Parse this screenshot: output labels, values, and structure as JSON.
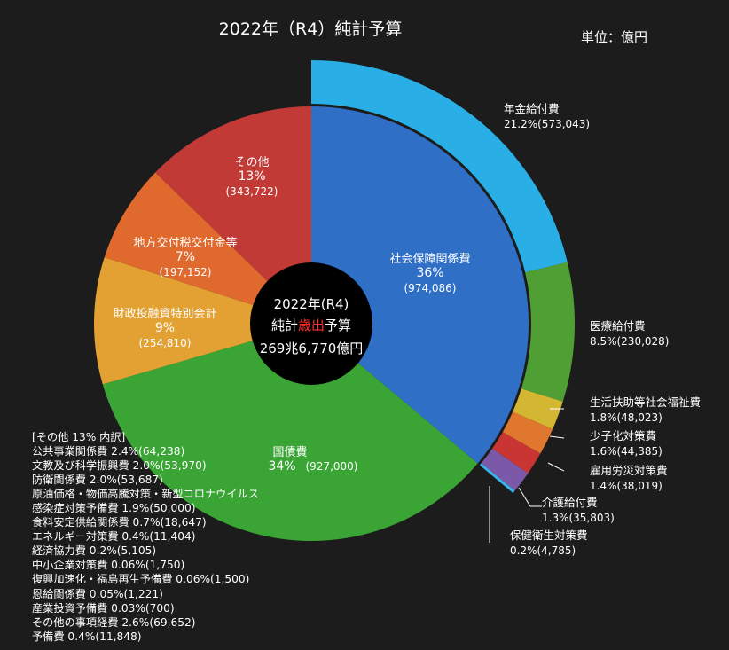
{
  "title": "2022年（R4）純計予算",
  "unit_label": "単位：億円",
  "center": {
    "line1": "2022年(R4)",
    "line2_prefix": "純計",
    "line2_highlight": "歳出",
    "line2_suffix": "予算",
    "line3": "269兆6,770億円"
  },
  "colors": {
    "background": "#1c1c1c",
    "center_circle": "#000000",
    "highlight": "#ff2d2d"
  },
  "breakdown": {
    "header": "[その他 13% 内訳]",
    "items": [
      "公共事業関係費 2.4%(64,238)",
      "文教及び科学振興費 2.0%(53,970)",
      "防衛関係費 2.0%(53,687)",
      "原油価格・物価高騰対策・新型コロナウイルス",
      "感染症対策予備費 1.9%(50,000)",
      "食料安定供給関係費 0.7%(18,647)",
      "エネルギー対策費 0.4%(11,404)",
      "経済協力費 0.2%(5,105)",
      "中小企業対策費 0.06%(1,750)",
      "復興加速化・福島再生予備費 0.06%(1,500)",
      "恩給関係費 0.05%(1,221)",
      "産業投資予備費 0.03%(700)",
      "その他の事項経費 2.6%(69,652)",
      "予備費 0.4%(11,848)"
    ]
  },
  "chart_data": {
    "type": "pie",
    "total": 2696770,
    "inner_ring": [
      {
        "name": "社会保障関係費",
        "pct_label": "36%",
        "value": 974086,
        "value_label": "(974,086)",
        "color": "#2f6fc6"
      },
      {
        "name": "国債費",
        "pct_label": "34%",
        "value": 927000,
        "value_label": "(927,000)",
        "color": "#3aa535"
      },
      {
        "name": "財政投融資特別会計",
        "pct_label": "9%",
        "value": 254810,
        "value_label": "(254,810)",
        "color": "#e3a133"
      },
      {
        "name": "地方交付税交付金等",
        "pct_label": "7%",
        "value": 197152,
        "value_label": "(197,152)",
        "color": "#e0692d"
      },
      {
        "name": "その他",
        "pct_label": "13%",
        "value": 343722,
        "value_label": "(343,722)",
        "color": "#c23a36"
      }
    ],
    "outer_ring": [
      {
        "name": "年金給付費",
        "label": "21.2%(573,043)",
        "value": 573043,
        "color": "#29aee6"
      },
      {
        "name": "医療給付費",
        "label": "8.5%(230,028)",
        "value": 230028,
        "color": "#4f9f35"
      },
      {
        "name": "生活扶助等社会福祉費",
        "label": "1.8%(48,023)",
        "value": 48023,
        "color": "#d3b733"
      },
      {
        "name": "少子化対策費",
        "label": "1.6%(44,385)",
        "value": 44385,
        "color": "#e0772e"
      },
      {
        "name": "雇用労災対策費",
        "label": "1.4%(38,019)",
        "value": 38019,
        "color": "#c83532"
      },
      {
        "name": "介護給付費",
        "label": "1.3%(35,803)",
        "value": 35803,
        "color": "#7b58a8"
      },
      {
        "name": "保健衛生対策費",
        "label": "0.2%(4,785)",
        "value": 4785,
        "color": "#38b5e8"
      }
    ]
  }
}
